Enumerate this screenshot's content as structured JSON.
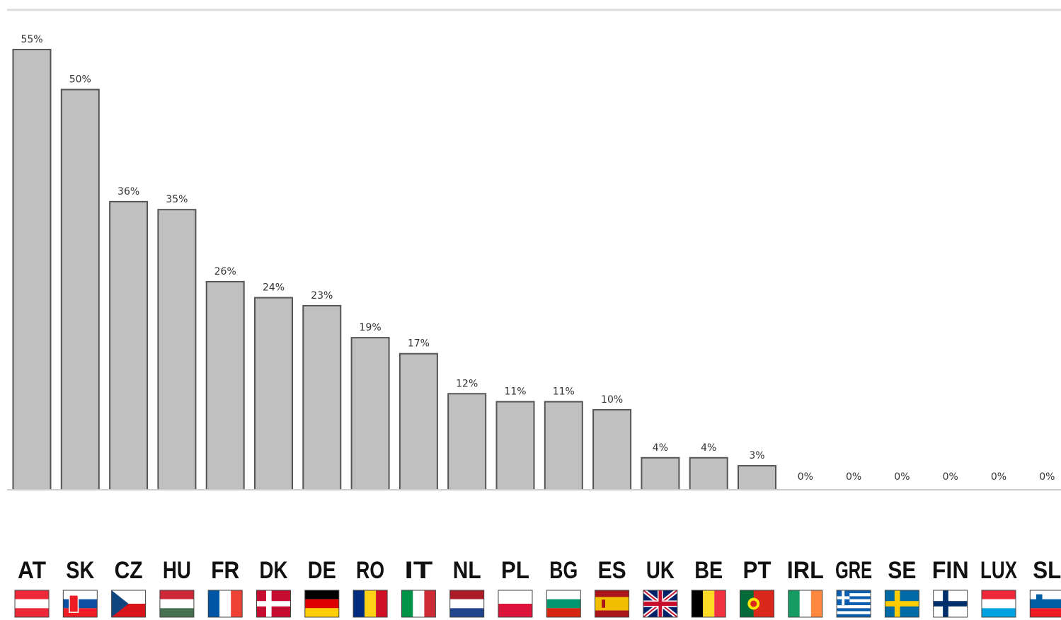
{
  "chart_data": {
    "type": "bar",
    "title": "",
    "xlabel": "",
    "ylabel": "",
    "ylim": [
      0,
      55
    ],
    "grid": false,
    "legend": "none",
    "categories": [
      "AT",
      "SK",
      "CZ",
      "HU",
      "FR",
      "DK",
      "DE",
      "RO",
      "IT",
      "NL",
      "PL",
      "BG",
      "ES",
      "UK",
      "BE",
      "PT",
      "IRL",
      "GRE",
      "SE",
      "FIN",
      "LUX",
      "SL"
    ],
    "values": [
      55,
      50,
      36,
      35,
      26,
      24,
      23,
      19,
      17,
      12,
      11,
      11,
      10,
      4,
      4,
      3,
      0,
      0,
      0,
      0,
      0,
      0
    ],
    "value_labels": [
      "55%",
      "50%",
      "36%",
      "35%",
      "26%",
      "24%",
      "23%",
      "19%",
      "17%",
      "12%",
      "11%",
      "11%",
      "10%",
      "4%",
      "4%",
      "3%",
      "0%",
      "0%",
      "0%",
      "0%",
      "0%",
      "0%"
    ],
    "flags": [
      "austria-flag",
      "slovakia-flag",
      "czechia-flag",
      "hungary-flag",
      "france-flag",
      "denmark-flag",
      "germany-flag",
      "romania-flag",
      "italy-flag",
      "netherlands-flag",
      "poland-flag",
      "bulgaria-flag",
      "spain-flag",
      "uk-flag",
      "belgium-flag",
      "portugal-flag",
      "ireland-flag",
      "greece-flag",
      "sweden-flag",
      "finland-flag",
      "luxembourg-flag",
      "slovenia-flag"
    ],
    "colors": {
      "bar": "#c0c0c0",
      "bar_stroke": "#555555",
      "axis": "#cccccc"
    }
  }
}
